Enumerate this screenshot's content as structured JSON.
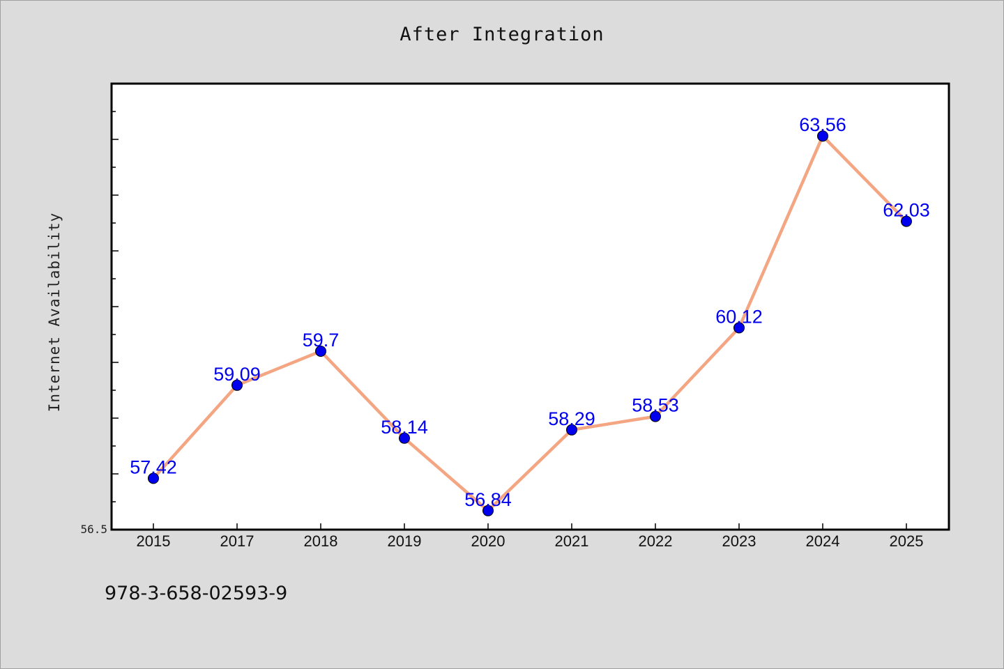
{
  "chart_data": {
    "type": "line",
    "title": "After Integration",
    "ylabel": "Internet Availability",
    "xlabel": "",
    "categories": [
      "2015",
      "2017",
      "2018",
      "2019",
      "2020",
      "2021",
      "2022",
      "2023",
      "2024",
      "2025"
    ],
    "series": [
      {
        "values": [
          57.42,
          59.09,
          59.7,
          58.14,
          56.84,
          58.29,
          58.53,
          60.12,
          63.56,
          62.03
        ],
        "labels": [
          "57.42",
          "59.09",
          "59.7",
          "58.14",
          "56.84",
          "58.29",
          "58.53",
          "60.12",
          "63.56",
          "62.03"
        ]
      }
    ],
    "ylim": [
      56.5,
      64.5
    ],
    "yticks": [
      56.5,
      57.0,
      57.5,
      58.0,
      58.5,
      59.0,
      59.5,
      60.0,
      60.5,
      61.0,
      61.5,
      62.0,
      62.5,
      63.0,
      63.5,
      64.0,
      64.5
    ],
    "ytick_labels_shown": [
      "56.5"
    ],
    "grid": false,
    "legend": "none",
    "colors": {
      "line": "#f4a582",
      "marker": "#0000ee",
      "data_label": "#0000ee",
      "background": "#dcdcdc",
      "plot_background": "#ffffff"
    }
  },
  "footer": {
    "isbn": "978-3-658-02593-9"
  }
}
